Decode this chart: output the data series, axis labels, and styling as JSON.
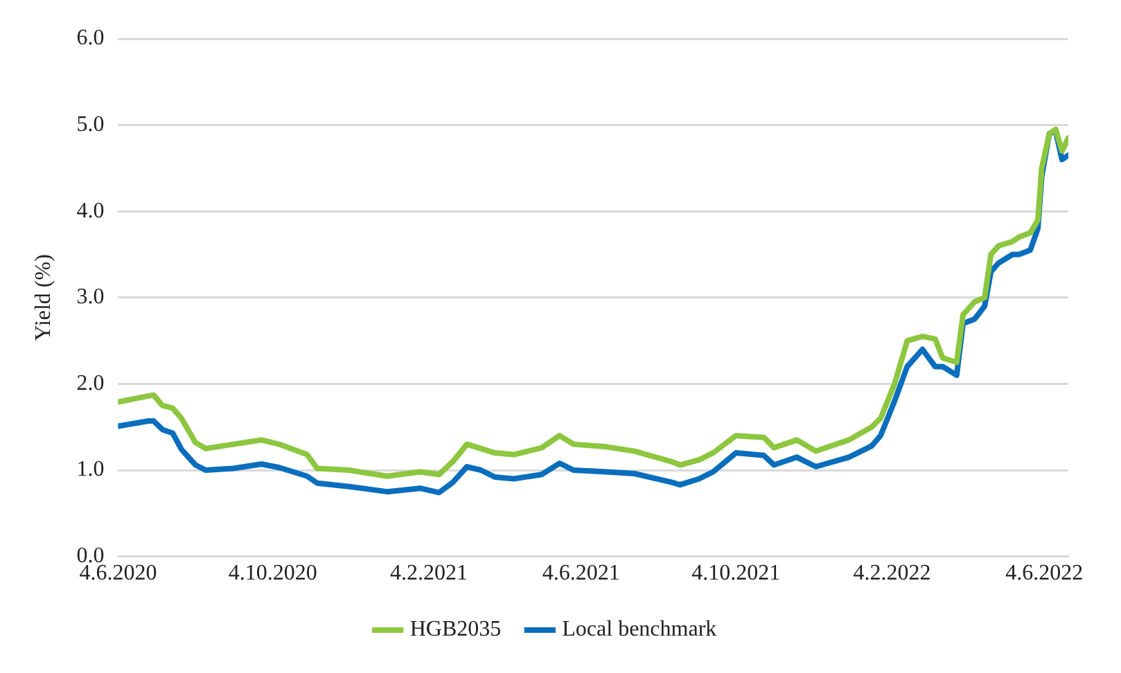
{
  "chart_data": {
    "type": "line",
    "ylabel": "Yield (%)",
    "x": [
      "2020-06-04",
      "2020-06-28",
      "2020-07-02",
      "2020-07-09",
      "2020-07-17",
      "2020-07-24",
      "2020-08-04",
      "2020-08-12",
      "2020-09-03",
      "2020-09-25",
      "2020-10-09",
      "2020-10-31",
      "2020-11-08",
      "2020-12-03",
      "2021-01-02",
      "2021-01-28",
      "2021-02-12",
      "2021-02-23",
      "2021-03-06",
      "2021-03-17",
      "2021-03-28",
      "2021-04-12",
      "2021-05-04",
      "2021-05-18",
      "2021-05-29",
      "2021-06-24",
      "2021-07-16",
      "2021-08-14",
      "2021-08-21",
      "2021-09-05",
      "2021-09-16",
      "2021-10-04",
      "2021-10-26",
      "2021-11-03",
      "2021-11-21",
      "2021-12-06",
      "2022-01-01",
      "2022-01-19",
      "2022-01-26",
      "2022-02-06",
      "2022-02-16",
      "2022-02-28",
      "2022-03-10",
      "2022-03-16",
      "2022-03-27",
      "2022-04-01",
      "2022-04-10",
      "2022-04-18",
      "2022-04-23",
      "2022-04-29",
      "2022-05-10",
      "2022-05-15",
      "2022-05-24",
      "2022-05-30",
      "2022-06-02",
      "2022-06-08",
      "2022-06-13",
      "2022-06-18",
      "2022-06-23"
    ],
    "series": [
      {
        "name": "HGB2035",
        "color": "#8dc63f",
        "values": [
          1.79,
          1.86,
          1.87,
          1.75,
          1.72,
          1.6,
          1.32,
          1.25,
          1.3,
          1.35,
          1.3,
          1.18,
          1.02,
          1.0,
          0.93,
          0.98,
          0.95,
          1.1,
          1.3,
          1.25,
          1.2,
          1.18,
          1.26,
          1.4,
          1.3,
          1.27,
          1.22,
          1.1,
          1.06,
          1.12,
          1.2,
          1.4,
          1.38,
          1.26,
          1.35,
          1.22,
          1.35,
          1.5,
          1.6,
          2.0,
          2.5,
          2.55,
          2.52,
          2.3,
          2.25,
          2.8,
          2.95,
          3.0,
          3.5,
          3.6,
          3.65,
          3.7,
          3.75,
          3.9,
          4.5,
          4.9,
          4.95,
          4.7,
          4.85
        ]
      },
      {
        "name": "Local benchmark",
        "color": "#0a6ebd",
        "values": [
          1.51,
          1.57,
          1.57,
          1.47,
          1.43,
          1.24,
          1.06,
          1.0,
          1.02,
          1.07,
          1.03,
          0.93,
          0.85,
          0.81,
          0.75,
          0.79,
          0.74,
          0.86,
          1.04,
          1.0,
          0.92,
          0.9,
          0.95,
          1.08,
          1.0,
          0.98,
          0.96,
          0.86,
          0.83,
          0.9,
          0.98,
          1.2,
          1.17,
          1.06,
          1.15,
          1.04,
          1.15,
          1.28,
          1.4,
          1.8,
          2.2,
          2.4,
          2.2,
          2.2,
          2.1,
          2.7,
          2.75,
          2.9,
          3.3,
          3.4,
          3.5,
          3.5,
          3.55,
          3.8,
          4.4,
          4.9,
          4.93,
          4.6,
          4.65
        ]
      }
    ],
    "xlim": [
      "2020-06-04",
      "2022-06-23"
    ],
    "xticks": [
      {
        "value": "2020-06-04",
        "label": "4.6.2020"
      },
      {
        "value": "2020-10-04",
        "label": "4.10.2020"
      },
      {
        "value": "2021-02-04",
        "label": "4.2.2021"
      },
      {
        "value": "2021-06-04",
        "label": "4.6.2021"
      },
      {
        "value": "2021-10-04",
        "label": "4.10.2021"
      },
      {
        "value": "2022-02-04",
        "label": "4.2.2022"
      },
      {
        "value": "2022-06-04",
        "label": "4.6.2022"
      }
    ],
    "ylim": [
      0,
      6
    ],
    "yticks": [
      {
        "value": 0,
        "label": "0.0"
      },
      {
        "value": 1,
        "label": "1.0"
      },
      {
        "value": 2,
        "label": "2.0"
      },
      {
        "value": 3,
        "label": "3.0"
      },
      {
        "value": 4,
        "label": "4.0"
      },
      {
        "value": 5,
        "label": "5.0"
      },
      {
        "value": 6,
        "label": "6.0"
      }
    ],
    "grid": "y",
    "legend": "bottom",
    "marker": "none",
    "line_style": "solid"
  }
}
